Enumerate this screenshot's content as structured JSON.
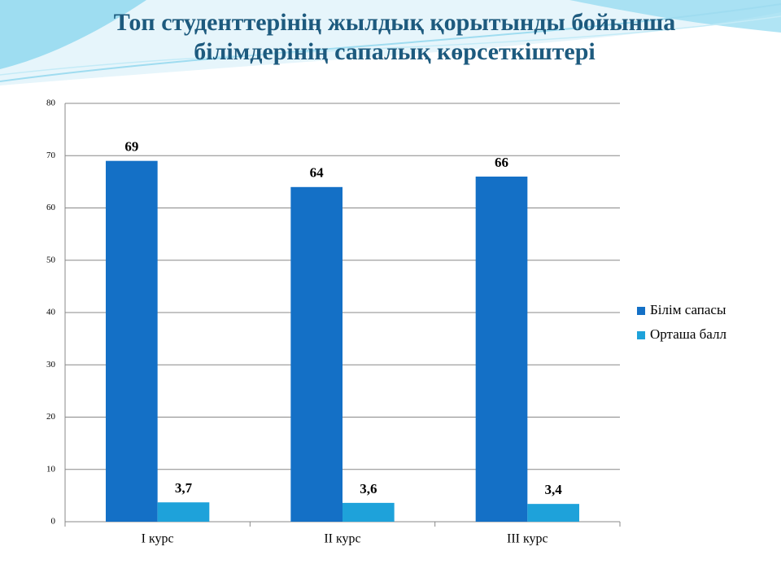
{
  "chart_data": {
    "type": "bar",
    "title": [
      "Топ студенттерінің  жылдық қорытынды бойынша",
      "білімдерінің  сапалық көрсеткіштері"
    ],
    "categories": [
      "I курс",
      "II курс",
      "III курс"
    ],
    "series": [
      {
        "name": "Білім сапасы",
        "color": "#1470c6",
        "values": [
          69,
          64,
          66
        ]
      },
      {
        "name": "Орташа балл",
        "color": "#1ea2da",
        "values": [
          3.7,
          3.6,
          3.4
        ],
        "value_labels": [
          "3,7",
          "3,6",
          "3,4"
        ]
      }
    ],
    "ylim": [
      0,
      80
    ],
    "yticks": [
      0,
      10,
      20,
      30,
      40,
      50,
      60,
      70,
      80
    ],
    "grid": true,
    "legend": "right"
  }
}
